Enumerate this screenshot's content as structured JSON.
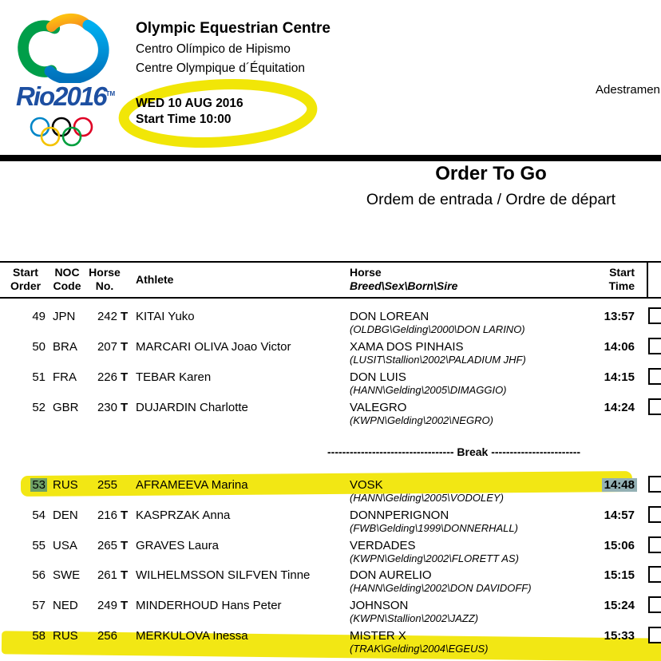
{
  "header": {
    "venue_en": "Olympic Equestrian Centre",
    "venue_pt": "Centro Olímpico de Hipismo",
    "venue_fr": "Centre Olympique d´Équitation",
    "date": "WED 10 AUG 2016",
    "start_time": "Start Time 10:00",
    "discipline_cropped": "Adestramen"
  },
  "logo": {
    "wordmark": "Rio2016",
    "tm": "TM",
    "colors": {
      "green": "#009E49",
      "yellow": "#FDC110",
      "orange": "#F6881F",
      "blue_light": "#00AEEF",
      "blue_dark": "#0072BC",
      "text_blue": "#1D4FA1"
    },
    "ring_colors": [
      "#0085C7",
      "#000000",
      "#DF0024",
      "#F4C300",
      "#009F3D"
    ]
  },
  "title": {
    "main": "Order To Go",
    "sub": "Ordem de entrada / Ordre de départ"
  },
  "table": {
    "columns": {
      "start_l1": "Start",
      "start_l2": "Order",
      "noc_l1": "NOC",
      "noc_l2": "Code",
      "no_l1": "Horse",
      "no_l2": "No.",
      "athlete": "Athlete",
      "horse_l1": "Horse",
      "horse_l2": "Breed\\Sex\\Born\\Sire",
      "time_l1": "Start",
      "time_l2": "Time"
    },
    "break_label": "---------------------------------- Break ------------------------",
    "rows": [
      {
        "order": "49",
        "noc": "JPN",
        "no": "242",
        "t": "T",
        "athlete": "KITAI Yuko",
        "horse": "DON LOREAN",
        "breeding": "(OLDBG\\Gelding\\2000\\DON LARINO)",
        "time": "13:57",
        "highlighted": false,
        "order_selected": false,
        "time_selected": false
      },
      {
        "order": "50",
        "noc": "BRA",
        "no": "207",
        "t": "T",
        "athlete": "MARCARI OLIVA Joao Victor",
        "horse": "XAMA DOS PINHAIS",
        "breeding": "(LUSIT\\Stallion\\2002\\PALADIUM JHF)",
        "time": "14:06",
        "highlighted": false,
        "order_selected": false,
        "time_selected": false
      },
      {
        "order": "51",
        "noc": "FRA",
        "no": "226",
        "t": "T",
        "athlete": "TEBAR Karen",
        "horse": "DON LUIS",
        "breeding": "(HANN\\Gelding\\2005\\DIMAGGIO)",
        "time": "14:15",
        "highlighted": false,
        "order_selected": false,
        "time_selected": false
      },
      {
        "order": "52",
        "noc": "GBR",
        "no": "230",
        "t": "T",
        "athlete": "DUJARDIN Charlotte",
        "horse": "VALEGRO",
        "breeding": "(KWPN\\Gelding\\2002\\NEGRO)",
        "time": "14:24",
        "highlighted": false,
        "order_selected": false,
        "time_selected": false
      },
      {
        "break": true
      },
      {
        "order": "53",
        "noc": "RUS",
        "no": "255",
        "t": "",
        "athlete": "AFRAMEEVA Marina",
        "horse": "VOSK",
        "breeding": "(HANN\\Gelding\\2005\\VODOLEY)",
        "time": "14:48",
        "highlighted": true,
        "order_selected": true,
        "time_selected": true
      },
      {
        "order": "54",
        "noc": "DEN",
        "no": "216",
        "t": "T",
        "athlete": "KASPRZAK Anna",
        "horse": "DONNPERIGNON",
        "breeding": "(FWB\\Gelding\\1999\\DONNERHALL)",
        "time": "14:57",
        "highlighted": false,
        "order_selected": false,
        "time_selected": false
      },
      {
        "order": "55",
        "noc": "USA",
        "no": "265",
        "t": "T",
        "athlete": "GRAVES Laura",
        "horse": "VERDADES",
        "breeding": "(KWPN\\Gelding\\2002\\FLORETT AS)",
        "time": "15:06",
        "highlighted": false,
        "order_selected": false,
        "time_selected": false
      },
      {
        "order": "56",
        "noc": "SWE",
        "no": "261",
        "t": "T",
        "athlete": "WILHELMSSON SILFVEN Tinne",
        "horse": "DON AURELIO",
        "breeding": "(HANN\\Gelding\\2002\\DON DAVIDOFF)",
        "time": "15:15",
        "highlighted": false,
        "order_selected": false,
        "time_selected": false
      },
      {
        "order": "57",
        "noc": "NED",
        "no": "249",
        "t": "T",
        "athlete": "MINDERHOUD Hans Peter",
        "horse": "JOHNSON",
        "breeding": "(KWPN\\Stallion\\2002\\JAZZ)",
        "time": "15:24",
        "highlighted": false,
        "order_selected": false,
        "time_selected": false
      },
      {
        "order": "58",
        "noc": "RUS",
        "no": "256",
        "t": "",
        "athlete": "MERKULOVA Inessa",
        "horse": "MISTER X",
        "breeding": "(TRAK\\Gelding\\2004\\EGEUS)",
        "time": "15:33",
        "highlighted": true,
        "order_selected": false,
        "time_selected": false
      }
    ]
  },
  "annotations": {
    "highlighter_color": "#F1E607",
    "selection_over_yellow": "#6FA166",
    "selection_over_white": "#93B0B4"
  }
}
